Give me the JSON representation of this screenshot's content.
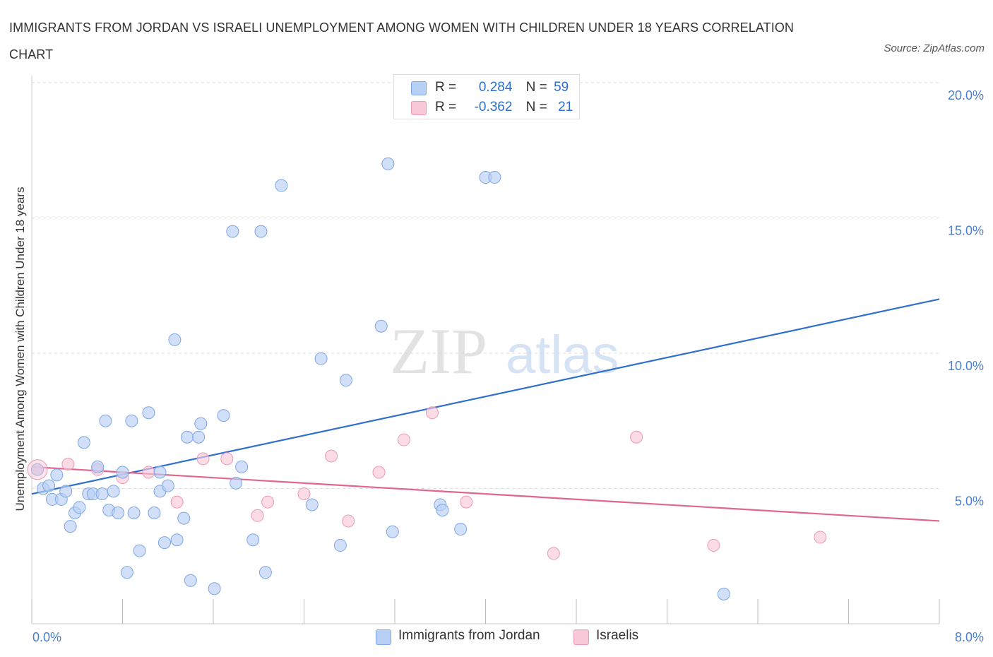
{
  "header": {
    "title": "IMMIGRANTS FROM JORDAN VS ISRAELI UNEMPLOYMENT AMONG WOMEN WITH CHILDREN UNDER 18 YEARS CORRELATION CHART",
    "source": "Source: ZipAtlas.com"
  },
  "watermark": {
    "zip": "ZIP",
    "atlas": "atlas"
  },
  "legend": {
    "rows": [
      {
        "r_label": "R =",
        "r_value": "0.284",
        "n_label": "N =",
        "n_value": "59"
      },
      {
        "r_label": "R =",
        "r_value": "-0.362",
        "n_label": "N =",
        "n_value": "21"
      }
    ]
  },
  "bottom_legend": {
    "series_a": "Immigrants from Jordan",
    "series_b": "Israelis"
  },
  "colors": {
    "blue_fill": "#b8d0f5",
    "blue_stroke": "#7ea6e6",
    "blue_line": "#2f6fd0",
    "pink_fill": "#f8c8d8",
    "pink_stroke": "#ec9ab6",
    "pink_line": "#e0668f",
    "tick_text": "#4a7fd0",
    "grid": "#dddddd"
  },
  "chart_data": {
    "type": "scatter",
    "title": "IMMIGRANTS FROM JORDAN VS ISRAELI UNEMPLOYMENT AMONG WOMEN WITH CHILDREN UNDER 18 YEARS CORRELATION CHART",
    "xlabel": "",
    "ylabel": "Unemployment Among Women with Children Under 18 years",
    "xlim": [
      0,
      8
    ],
    "ylim": [
      0,
      20
    ],
    "x_tick_labels": [
      "0.0%",
      "8.0%"
    ],
    "y_ticks": [
      5,
      10,
      15,
      20
    ],
    "y_tick_labels": [
      "5.0%",
      "10.0%",
      "15.0%",
      "20.0%"
    ],
    "grid": "horizontal dashed",
    "legend_placement": "top-center",
    "series": [
      {
        "name": "Immigrants from Jordan",
        "color": "#b8d0f5",
        "trend": {
          "x": [
            0,
            8
          ],
          "y": [
            4.8,
            12.0
          ]
        },
        "points": [
          [
            0.05,
            5.7
          ],
          [
            0.1,
            5.0
          ],
          [
            0.15,
            5.1
          ],
          [
            0.18,
            4.6
          ],
          [
            0.22,
            5.5
          ],
          [
            0.26,
            4.6
          ],
          [
            0.3,
            4.9
          ],
          [
            0.34,
            3.6
          ],
          [
            0.38,
            4.1
          ],
          [
            0.42,
            4.3
          ],
          [
            0.46,
            6.7
          ],
          [
            0.5,
            4.8
          ],
          [
            0.54,
            4.8
          ],
          [
            0.58,
            5.8
          ],
          [
            0.62,
            4.8
          ],
          [
            0.65,
            7.5
          ],
          [
            0.68,
            4.2
          ],
          [
            0.72,
            4.9
          ],
          [
            0.76,
            4.1
          ],
          [
            0.8,
            5.6
          ],
          [
            0.84,
            1.9
          ],
          [
            0.88,
            7.5
          ],
          [
            0.9,
            4.1
          ],
          [
            0.95,
            2.7
          ],
          [
            1.03,
            7.8
          ],
          [
            1.08,
            4.1
          ],
          [
            1.13,
            5.6
          ],
          [
            1.13,
            4.9
          ],
          [
            1.17,
            3.0
          ],
          [
            1.2,
            5.1
          ],
          [
            1.26,
            10.5
          ],
          [
            1.28,
            3.1
          ],
          [
            1.34,
            3.9
          ],
          [
            1.37,
            6.9
          ],
          [
            1.4,
            1.6
          ],
          [
            1.47,
            6.9
          ],
          [
            1.49,
            7.4
          ],
          [
            1.61,
            1.3
          ],
          [
            1.69,
            7.7
          ],
          [
            1.77,
            14.5
          ],
          [
            1.8,
            5.2
          ],
          [
            1.85,
            5.8
          ],
          [
            1.95,
            3.1
          ],
          [
            2.02,
            14.5
          ],
          [
            2.06,
            1.9
          ],
          [
            2.2,
            16.2
          ],
          [
            2.47,
            4.4
          ],
          [
            2.55,
            9.8
          ],
          [
            2.72,
            2.9
          ],
          [
            2.77,
            9.0
          ],
          [
            3.08,
            11.0
          ],
          [
            3.14,
            17.0
          ],
          [
            3.18,
            3.4
          ],
          [
            3.6,
            4.4
          ],
          [
            3.62,
            4.2
          ],
          [
            3.78,
            3.5
          ],
          [
            4.0,
            16.5
          ],
          [
            4.08,
            16.5
          ],
          [
            6.1,
            1.1
          ]
        ]
      },
      {
        "name": "Israelis",
        "color": "#f8c8d8",
        "trend": {
          "x": [
            0,
            8
          ],
          "y": [
            5.8,
            3.8
          ]
        },
        "points": [
          [
            0.05,
            5.7
          ],
          [
            0.32,
            5.9
          ],
          [
            0.58,
            5.7
          ],
          [
            0.8,
            5.4
          ],
          [
            1.03,
            5.6
          ],
          [
            1.28,
            4.5
          ],
          [
            1.51,
            6.1
          ],
          [
            1.72,
            6.1
          ],
          [
            1.99,
            4.0
          ],
          [
            2.08,
            4.5
          ],
          [
            2.4,
            4.8
          ],
          [
            2.64,
            6.2
          ],
          [
            2.79,
            3.8
          ],
          [
            3.06,
            5.6
          ],
          [
            3.28,
            6.8
          ],
          [
            3.53,
            7.8
          ],
          [
            3.83,
            4.5
          ],
          [
            4.6,
            2.6
          ],
          [
            5.33,
            6.9
          ],
          [
            6.01,
            2.9
          ],
          [
            6.95,
            3.2
          ]
        ]
      }
    ]
  }
}
